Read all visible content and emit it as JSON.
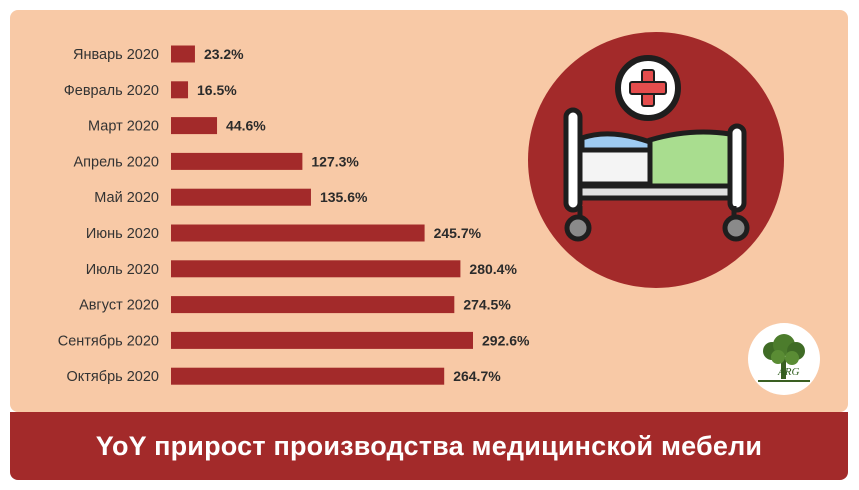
{
  "chart_data": {
    "type": "bar",
    "orientation": "horizontal",
    "title": "YoY прирост производства медицинской мебели",
    "categories": [
      "Январь 2020",
      "Февраль 2020",
      "Март 2020",
      "Апрель 2020",
      "Май 2020",
      "Июнь 2020",
      "Июль 2020",
      "Август 2020",
      "Сентябрь 2020",
      "Октябрь 2020"
    ],
    "values": [
      23.2,
      16.5,
      44.6,
      127.3,
      135.6,
      245.7,
      280.4,
      274.5,
      292.6,
      264.7
    ],
    "value_labels": [
      "23.2%",
      "16.5%",
      "44.6%",
      "127.3%",
      "135.6%",
      "245.7%",
      "280.4%",
      "274.5%",
      "292.6%",
      "264.7%"
    ],
    "xlim": [
      0,
      292.6
    ],
    "grid": false,
    "legend": "none",
    "colors": {
      "bar": "#a32a2a",
      "panel": "#f8c9a6",
      "footer": "#a32a2a"
    }
  },
  "illustration": {
    "icon": "hospital-bed-icon",
    "circle_color": "#a32a2a"
  },
  "logo": {
    "icon": "tree-logo-icon",
    "text": "ARG"
  }
}
